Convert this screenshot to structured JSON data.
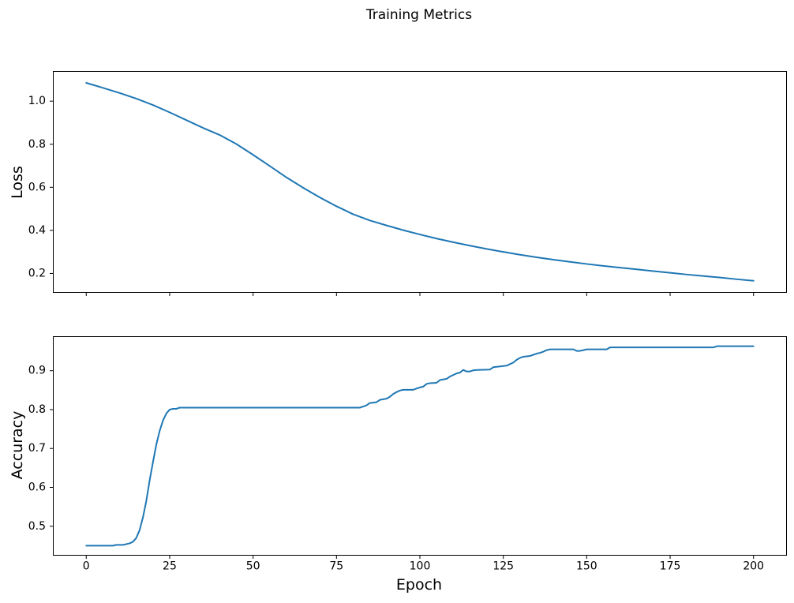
{
  "figure": {
    "title": "Training Metrics",
    "background": "#ffffff",
    "line_color": "#1f77b4"
  },
  "chart_data": [
    {
      "type": "line",
      "name": "loss",
      "title": "",
      "xlabel": "",
      "ylabel": "Loss",
      "xlim": [
        -10,
        210
      ],
      "ylim": [
        0.11,
        1.14
      ],
      "grid": false,
      "legend": null,
      "xticks": [
        0,
        25,
        50,
        75,
        100,
        125,
        150,
        175,
        200
      ],
      "xtick_labels": [],
      "yticks": [
        0.2,
        0.4,
        0.6,
        0.8,
        1.0
      ],
      "ytick_labels": [
        "0.2",
        "0.4",
        "0.6",
        "0.8",
        "1.0"
      ],
      "series": [
        {
          "name": "loss",
          "color": "#1f77b4",
          "points": [
            [
              0,
              1.085
            ],
            [
              5,
              1.062
            ],
            [
              10,
              1.038
            ],
            [
              15,
              1.012
            ],
            [
              20,
              0.982
            ],
            [
              25,
              0.948
            ],
            [
              30,
              0.912
            ],
            [
              35,
              0.876
            ],
            [
              40,
              0.843
            ],
            [
              45,
              0.801
            ],
            [
              50,
              0.751
            ],
            [
              55,
              0.699
            ],
            [
              60,
              0.646
            ],
            [
              65,
              0.598
            ],
            [
              70,
              0.553
            ],
            [
              75,
              0.512
            ],
            [
              80,
              0.475
            ],
            [
              85,
              0.446
            ],
            [
              90,
              0.423
            ],
            [
              95,
              0.401
            ],
            [
              100,
              0.381
            ],
            [
              105,
              0.362
            ],
            [
              110,
              0.345
            ],
            [
              115,
              0.329
            ],
            [
              120,
              0.314
            ],
            [
              125,
              0.3
            ],
            [
              130,
              0.287
            ],
            [
              135,
              0.275
            ],
            [
              140,
              0.264
            ],
            [
              145,
              0.254
            ],
            [
              150,
              0.244
            ],
            [
              155,
              0.235
            ],
            [
              160,
              0.227
            ],
            [
              165,
              0.219
            ],
            [
              170,
              0.211
            ],
            [
              175,
              0.203
            ],
            [
              180,
              0.195
            ],
            [
              185,
              0.188
            ],
            [
              190,
              0.181
            ],
            [
              195,
              0.173
            ],
            [
              200,
              0.166
            ]
          ]
        }
      ]
    },
    {
      "type": "line",
      "name": "accuracy",
      "title": "",
      "xlabel": "Epoch",
      "ylabel": "Accuracy",
      "xlim": [
        -10,
        210
      ],
      "ylim": [
        0.4244,
        0.9887
      ],
      "grid": false,
      "legend": null,
      "xticks": [
        0,
        25,
        50,
        75,
        100,
        125,
        150,
        175,
        200
      ],
      "xtick_labels": [
        "0",
        "25",
        "50",
        "75",
        "100",
        "125",
        "150",
        "175",
        "200"
      ],
      "yticks": [
        0.5,
        0.6,
        0.7,
        0.8,
        0.9
      ],
      "ytick_labels": [
        "0.5",
        "0.6",
        "0.7",
        "0.8",
        "0.9"
      ],
      "series": [
        {
          "name": "accuracy",
          "color": "#1f77b4",
          "points": [
            [
              0,
              0.45
            ],
            [
              8,
              0.45
            ],
            [
              9,
              0.452
            ],
            [
              11,
              0.452
            ],
            [
              12,
              0.454
            ],
            [
              13,
              0.456
            ],
            [
              14,
              0.46
            ],
            [
              15,
              0.47
            ],
            [
              16,
              0.49
            ],
            [
              17,
              0.523
            ],
            [
              18,
              0.565
            ],
            [
              19,
              0.618
            ],
            [
              20,
              0.665
            ],
            [
              21,
              0.71
            ],
            [
              22,
              0.745
            ],
            [
              23,
              0.772
            ],
            [
              24,
              0.79
            ],
            [
              25,
              0.8
            ],
            [
              26,
              0.802
            ],
            [
              27,
              0.802
            ],
            [
              28,
              0.805
            ],
            [
              82,
              0.805
            ],
            [
              83,
              0.808
            ],
            [
              84,
              0.811
            ],
            [
              85,
              0.817
            ],
            [
              87,
              0.819
            ],
            [
              88,
              0.825
            ],
            [
              90,
              0.828
            ],
            [
              91,
              0.833
            ],
            [
              92,
              0.84
            ],
            [
              93,
              0.845
            ],
            [
              94,
              0.849
            ],
            [
              95,
              0.851
            ],
            [
              98,
              0.851
            ],
            [
              99,
              0.854
            ],
            [
              100,
              0.857
            ],
            [
              101,
              0.859
            ],
            [
              102,
              0.866
            ],
            [
              103,
              0.868
            ],
            [
              105,
              0.869
            ],
            [
              106,
              0.876
            ],
            [
              108,
              0.879
            ],
            [
              109,
              0.885
            ],
            [
              110,
              0.889
            ],
            [
              111,
              0.893
            ],
            [
              112,
              0.895
            ],
            [
              113,
              0.902
            ],
            [
              114,
              0.898
            ],
            [
              115,
              0.898
            ],
            [
              116,
              0.901
            ],
            [
              117,
              0.902
            ],
            [
              121,
              0.903
            ],
            [
              122,
              0.909
            ],
            [
              124,
              0.911
            ],
            [
              126,
              0.913
            ],
            [
              127,
              0.917
            ],
            [
              128,
              0.921
            ],
            [
              129,
              0.928
            ],
            [
              130,
              0.933
            ],
            [
              131,
              0.936
            ],
            [
              133,
              0.938
            ],
            [
              134,
              0.941
            ],
            [
              135,
              0.944
            ],
            [
              136,
              0.946
            ],
            [
              137,
              0.949
            ],
            [
              138,
              0.953
            ],
            [
              139,
              0.955
            ],
            [
              146,
              0.955
            ],
            [
              147,
              0.951
            ],
            [
              148,
              0.951
            ],
            [
              149,
              0.953
            ],
            [
              150,
              0.955
            ],
            [
              156,
              0.955
            ],
            [
              157,
              0.96
            ],
            [
              188,
              0.96
            ],
            [
              189,
              0.963
            ],
            [
              200,
              0.963
            ]
          ]
        }
      ]
    }
  ]
}
